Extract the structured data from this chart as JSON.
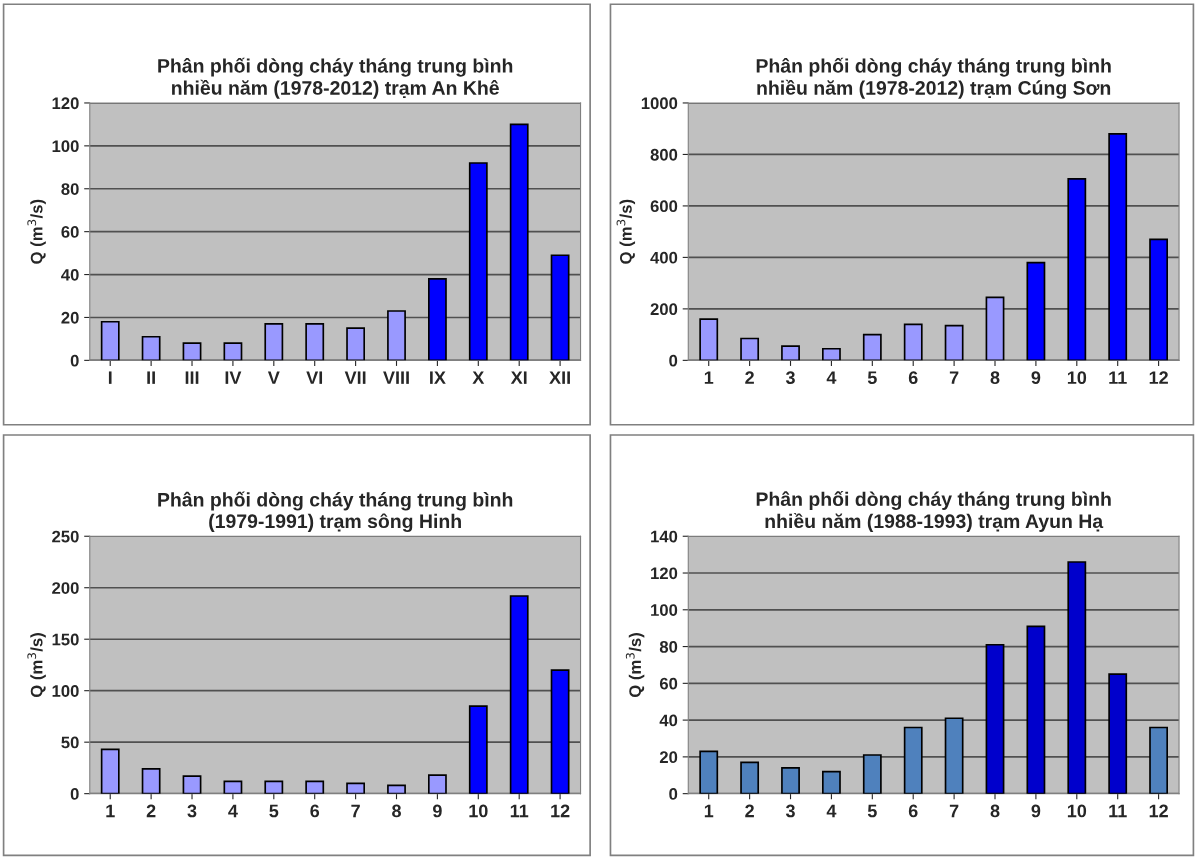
{
  "chart_data": [
    {
      "type": "bar",
      "title": "Phân phối dòng cháy tháng trung bình\nnhiều năm (1978-2012) trạm An Khê",
      "ylabel": "Q (m$^{3}$/s)",
      "categories": [
        "I",
        "II",
        "III",
        "IV",
        "V",
        "VI",
        "VII",
        "VIII",
        "IX",
        "X",
        "XI",
        "XII"
      ],
      "values": [
        18,
        11,
        8,
        8,
        17,
        17,
        15,
        23,
        38,
        92,
        110,
        49
      ],
      "colors": [
        "#9999ff",
        "#9999ff",
        "#9999ff",
        "#9999ff",
        "#9999ff",
        "#9999ff",
        "#9999ff",
        "#9999ff",
        "#0000ff",
        "#0000ff",
        "#0000ff",
        "#0000ff"
      ],
      "ylim": [
        0,
        120
      ],
      "yticks": [
        0,
        20,
        40,
        60,
        80,
        100,
        120
      ],
      "grid": "y"
    },
    {
      "type": "bar",
      "title": "Phân phối dòng cháy tháng trung bình\nnhiều năm (1978-2012) trạm Cúng Sơn",
      "ylabel": "Q (m$^{3}$/s)",
      "categories": [
        "1",
        "2",
        "3",
        "4",
        "5",
        "6",
        "7",
        "8",
        "9",
        "10",
        "11",
        "12"
      ],
      "values": [
        160,
        85,
        55,
        45,
        100,
        140,
        135,
        245,
        380,
        705,
        880,
        470
      ],
      "colors": [
        "#9999ff",
        "#9999ff",
        "#9999ff",
        "#9999ff",
        "#9999ff",
        "#9999ff",
        "#9999ff",
        "#9999ff",
        "#0000ff",
        "#0000ff",
        "#0000ff",
        "#0000ff"
      ],
      "ylim": [
        0,
        1000
      ],
      "yticks": [
        0,
        200,
        400,
        600,
        800,
        1000
      ],
      "grid": "y"
    },
    {
      "type": "bar",
      "title": "Phân phối dòng cháy tháng trung bình\n(1979-1991) trạm sông Hinh",
      "ylabel": "Q (m$^{3}$/s)",
      "categories": [
        "1",
        "2",
        "3",
        "4",
        "5",
        "6",
        "7",
        "8",
        "9",
        "10",
        "11",
        "12"
      ],
      "values": [
        43,
        24,
        17,
        12,
        12,
        12,
        10,
        8,
        18,
        85,
        192,
        120
      ],
      "colors": [
        "#9999ff",
        "#9999ff",
        "#9999ff",
        "#9999ff",
        "#9999ff",
        "#9999ff",
        "#9999ff",
        "#9999ff",
        "#9999ff",
        "#0000ff",
        "#0000ff",
        "#0000ff"
      ],
      "ylim": [
        0,
        250
      ],
      "yticks": [
        0,
        50,
        100,
        150,
        200,
        250
      ],
      "grid": "y"
    },
    {
      "type": "bar",
      "title": "Phân phối dòng cháy tháng trung bình\nnhiều năm (1988-1993) trạm Ayun Hạ",
      "ylabel": "Q (m$^{3}$/s)",
      "categories": [
        "1",
        "2",
        "3",
        "4",
        "5",
        "6",
        "7",
        "8",
        "9",
        "10",
        "11",
        "12"
      ],
      "values": [
        23,
        17,
        14,
        12,
        21,
        36,
        41,
        81,
        91,
        126,
        65,
        36
      ],
      "colors": [
        "#4f81bd",
        "#4f81bd",
        "#4f81bd",
        "#4f81bd",
        "#4f81bd",
        "#4f81bd",
        "#4f81bd",
        "#0000cc",
        "#0000cc",
        "#0000cc",
        "#0000cc",
        "#4f81bd"
      ],
      "ylim": [
        0,
        140
      ],
      "yticks": [
        0,
        20,
        40,
        60,
        80,
        100,
        120,
        140
      ],
      "grid": "y"
    }
  ]
}
